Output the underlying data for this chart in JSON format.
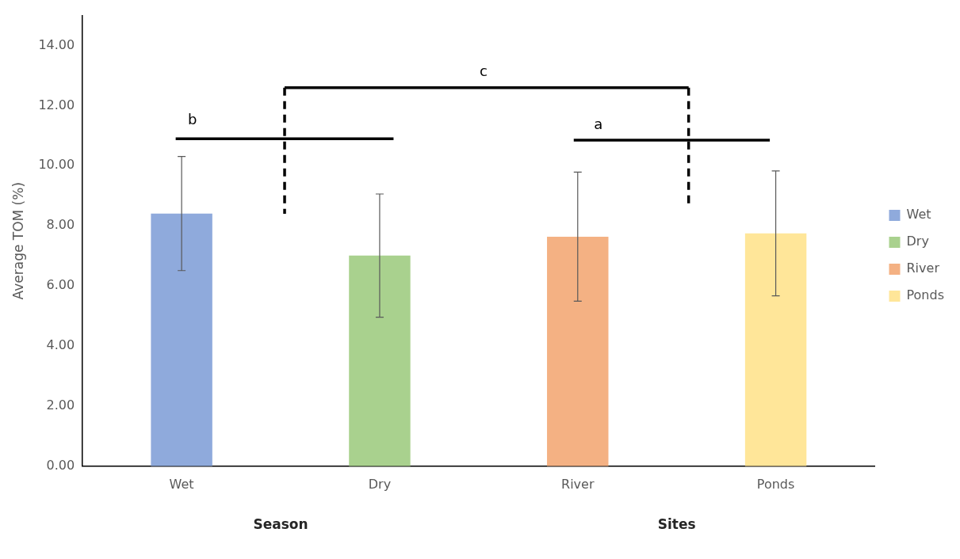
{
  "chart_data": {
    "type": "bar",
    "ylabel": "Average TOM (%)",
    "categories": [
      "Wet",
      "Dry",
      "River",
      "Ponds"
    ],
    "series": [
      {
        "name": "Wet",
        "color": "#8faadc",
        "values": [
          8.41,
          null,
          null,
          null
        ],
        "errors": [
          1.9,
          null,
          null,
          null
        ]
      },
      {
        "name": "Dry",
        "color": "#a9d18e",
        "values": [
          null,
          7.01,
          null,
          null
        ],
        "errors": [
          null,
          2.05,
          null,
          null
        ]
      },
      {
        "name": "River",
        "color": "#f4b183",
        "values": [
          null,
          null,
          7.64,
          null
        ],
        "errors": [
          null,
          null,
          2.15,
          null
        ]
      },
      {
        "name": "Ponds",
        "color": "#ffe699",
        "values": [
          null,
          null,
          null,
          7.75
        ],
        "errors": [
          null,
          null,
          null,
          2.08
        ]
      }
    ],
    "ylim": [
      0,
      15
    ],
    "yticks": [
      {
        "value": 0,
        "label": "0.00"
      },
      {
        "value": 2,
        "label": "2.00"
      },
      {
        "value": 4,
        "label": "4.00"
      },
      {
        "value": 6,
        "label": "6.00"
      },
      {
        "value": 8,
        "label": "8.00"
      },
      {
        "value": 10,
        "label": "10.00"
      },
      {
        "value": 12,
        "label": "12.00"
      },
      {
        "value": 14,
        "label": "14.00"
      }
    ],
    "legend": "right",
    "annotations": [
      "b",
      "c",
      "a",
      "Season",
      "Sites"
    ]
  }
}
